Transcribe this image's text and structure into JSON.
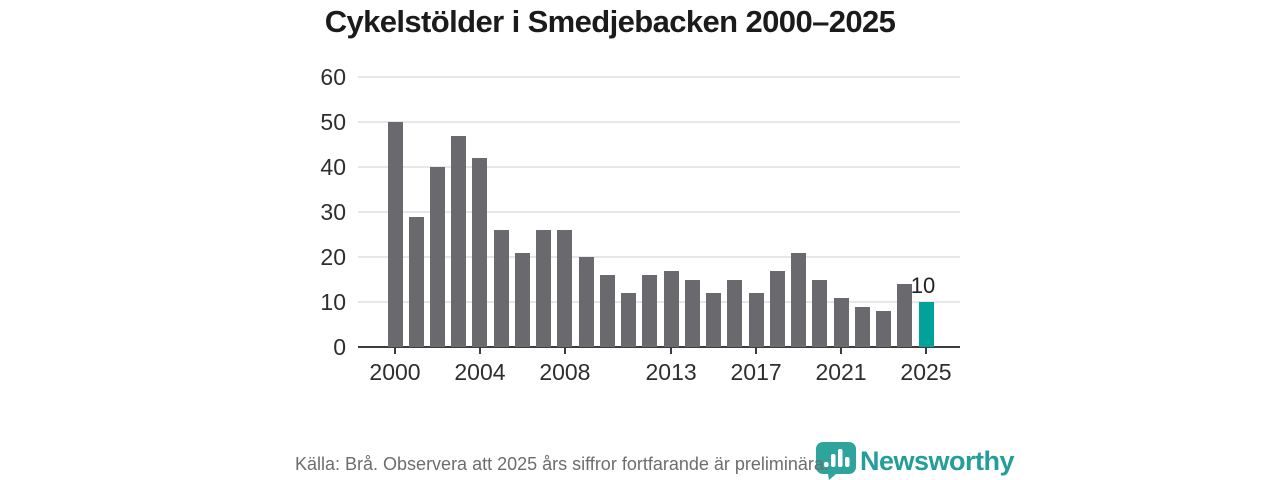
{
  "title": "Cykelstölder i Smedjebacken 2000–2025",
  "footer": {
    "source_note": "Källa: Brå. Observera att 2025 års siffror fortfarande är preliminära."
  },
  "branding": {
    "logo_text": "Newsworthy",
    "logo_icon": "bar-chart-marker-icon"
  },
  "colors": {
    "bar": "#69696e",
    "highlight": "#00a299",
    "axis": "#3d3d3d",
    "grid": "#e7e7e7",
    "title_text": "#1b1b1b",
    "tick_text": "#2e2e2e",
    "footer_text": "#6d6d71",
    "brand_teal": "#259d99"
  },
  "chart_data": {
    "type": "bar",
    "title": "Cykelstölder i Smedjebacken 2000–2025",
    "xlabel": "",
    "ylabel": "",
    "categories": [
      2000,
      2001,
      2002,
      2003,
      2004,
      2005,
      2006,
      2007,
      2008,
      2009,
      2010,
      2011,
      2012,
      2013,
      2014,
      2015,
      2016,
      2017,
      2018,
      2019,
      2020,
      2021,
      2022,
      2023,
      2024,
      2025
    ],
    "values": [
      50,
      29,
      40,
      47,
      42,
      26,
      21,
      26,
      26,
      20,
      16,
      12,
      16,
      17,
      15,
      12,
      15,
      12,
      17,
      21,
      15,
      11,
      9,
      8,
      14,
      10
    ],
    "ylim": [
      0,
      60
    ],
    "yticks": [
      0,
      10,
      20,
      30,
      40,
      50,
      60
    ],
    "xticks_labeled": [
      2000,
      2004,
      2008,
      2013,
      2017,
      2021,
      2025
    ],
    "grid": "horizontal",
    "legend": "none",
    "bar_color": "#69696e",
    "highlight_year": 2025,
    "highlight_color": "#00a299",
    "highlight_value_label": "10"
  }
}
